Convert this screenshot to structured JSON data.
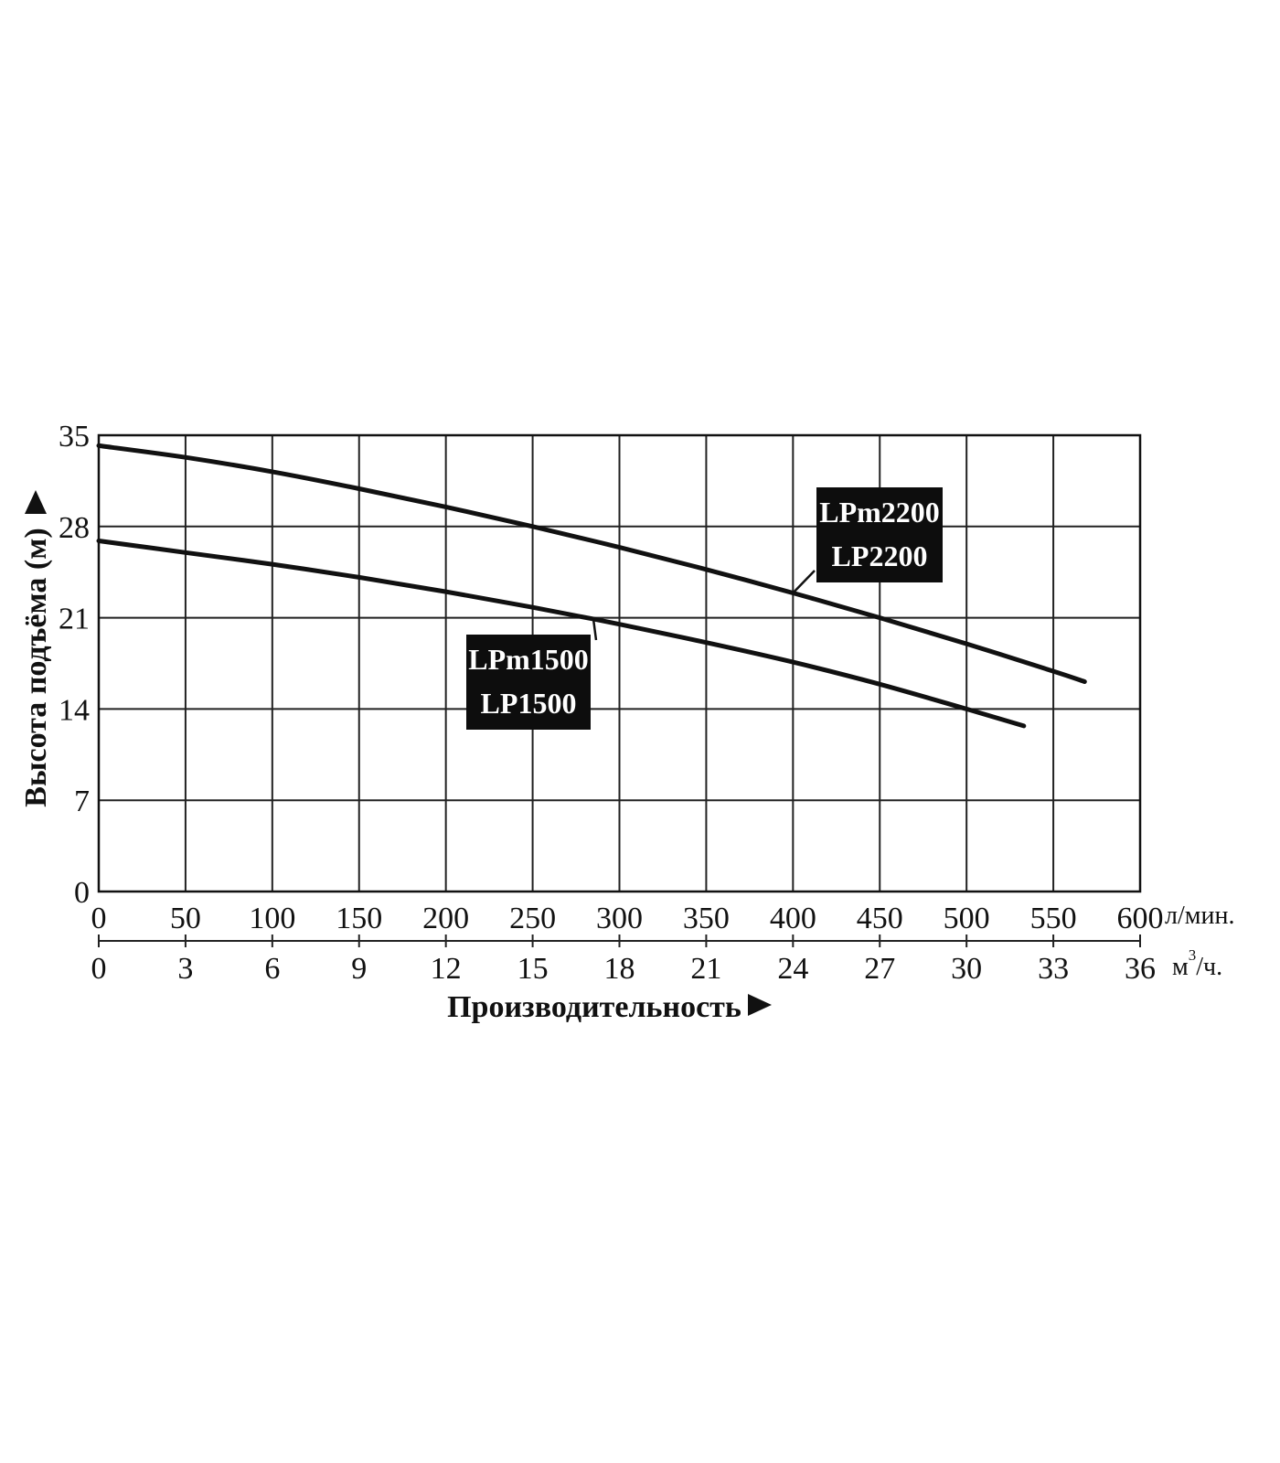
{
  "chart_data": {
    "type": "line",
    "title": "",
    "ylabel": "Высота подъёма (м)",
    "xlabel": "Производительность",
    "x_unit_primary": "л/мин.",
    "x_unit_secondary_base": "м",
    "x_unit_secondary_exp": "3",
    "x_unit_secondary_tail": "/ч.",
    "xlim": [
      0,
      600
    ],
    "ylim": [
      0,
      35
    ],
    "x_ticks": [
      0,
      50,
      100,
      150,
      200,
      250,
      300,
      350,
      400,
      450,
      500,
      550,
      600
    ],
    "x_ticks_secondary": [
      0,
      3,
      6,
      9,
      12,
      15,
      18,
      21,
      24,
      27,
      30,
      33,
      36
    ],
    "y_ticks": [
      0,
      7,
      14,
      21,
      28,
      35
    ],
    "grid": true,
    "series": [
      {
        "name": "LPm2200 LP2200",
        "label_lines": [
          "LPm2200",
          "LP2200"
        ],
        "x": [
          0,
          50,
          100,
          150,
          200,
          250,
          300,
          350,
          400,
          450,
          500,
          550,
          568
        ],
        "y": [
          34.2,
          33.3,
          32.2,
          30.9,
          29.5,
          28.0,
          26.4,
          24.7,
          22.9,
          21.0,
          19.0,
          16.9,
          16.1
        ]
      },
      {
        "name": "LPm1500 LP1500",
        "label_lines": [
          "LPm1500",
          "LP1500"
        ],
        "x": [
          0,
          50,
          100,
          150,
          200,
          250,
          300,
          350,
          400,
          450,
          500,
          533
        ],
        "y": [
          26.9,
          26.0,
          25.1,
          24.1,
          23.0,
          21.8,
          20.5,
          19.1,
          17.6,
          15.9,
          14.0,
          12.7
        ]
      }
    ]
  }
}
